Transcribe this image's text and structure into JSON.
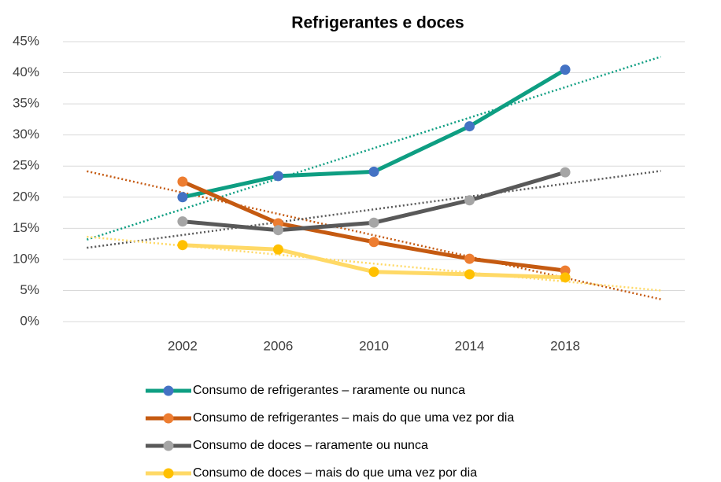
{
  "chart_data": {
    "type": "line",
    "title": "Refrigerantes e doces",
    "categories": [
      "2002",
      "2006",
      "2010",
      "2014",
      "2018"
    ],
    "series": [
      {
        "name": "Consumo de refrigerantes – raramente ou nunca",
        "color": "#0e9e82",
        "marker_color": "#4472c4",
        "values": [
          20.0,
          23.4,
          24.1,
          31.4,
          40.5
        ]
      },
      {
        "name": "Consumo de refrigerantes – mais do que uma vez por dia",
        "color": "#c55a11",
        "marker_color": "#ed7d31",
        "values": [
          22.5,
          15.8,
          12.8,
          10.1,
          8.2
        ]
      },
      {
        "name": "Consumo de doces – raramente ou nunca",
        "color": "#595959",
        "marker_color": "#a5a5a5",
        "values": [
          16.1,
          14.7,
          15.9,
          19.5,
          24.0
        ]
      },
      {
        "name": "Consumo de doces – mais do que uma vez por dia",
        "color": "#ffd966",
        "marker_color": "#ffc000",
        "values": [
          12.3,
          11.6,
          8.0,
          7.6,
          7.1
        ]
      }
    ],
    "trendline": {
      "type": "linear",
      "forward": 1,
      "backward": 1
    },
    "ylim": [
      0,
      45
    ],
    "yticks": [
      {
        "value": 0,
        "label": "0%"
      },
      {
        "value": 5,
        "label": "5%"
      },
      {
        "value": 10,
        "label": "10%"
      },
      {
        "value": 15,
        "label": "15%"
      },
      {
        "value": 20,
        "label": "20%"
      },
      {
        "value": 25,
        "label": "25%"
      },
      {
        "value": 30,
        "label": "30%"
      },
      {
        "value": 35,
        "label": "35%"
      },
      {
        "value": 40,
        "label": "40%"
      },
      {
        "value": 45,
        "label": "45%"
      }
    ],
    "grid": true,
    "legend": "bottom"
  }
}
